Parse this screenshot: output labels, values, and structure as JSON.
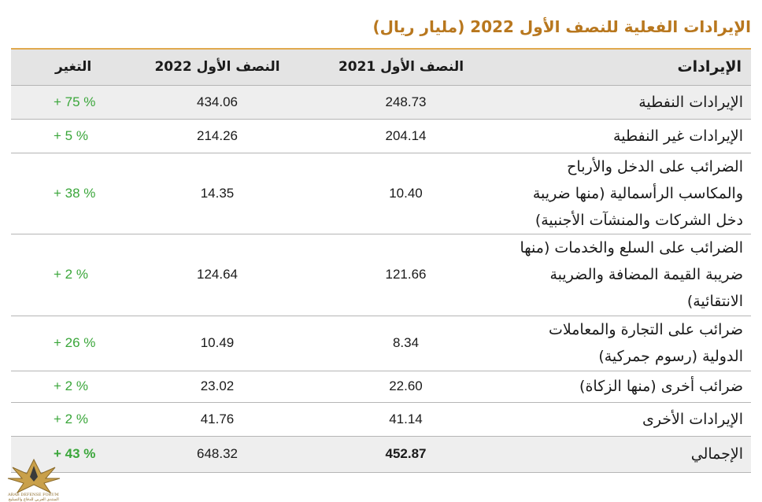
{
  "title": "الإيرادات الفعلية للنصف الأول 2022 (مليار ريال)",
  "table": {
    "headers": {
      "label": "الإيرادات",
      "h1_2021": "النصف الأول 2021",
      "h1_2022": "النصف الأول 2022",
      "change": "التغير"
    },
    "rows": [
      {
        "label": "الإيرادات النفطية",
        "h1_2021": "248.73",
        "h1_2022": "434.06",
        "change": "+ 75 %"
      },
      {
        "label": "الإيرادات غير النفطية",
        "h1_2021": "204.14",
        "h1_2022": "214.26",
        "change": "+ 5 %"
      },
      {
        "label": "الضرائب على الدخل والأرباح والمكاسب الرأسمالية (منها ضريبة دخل الشركات والمنشآت الأجنبية)",
        "h1_2021": "10.40",
        "h1_2022": "14.35",
        "change": "+ 38 %"
      },
      {
        "label": "الضرائب على السلع والخدمات (منها ضريبة القيمة المضافة والضريبة الانتقائية)",
        "h1_2021": "121.66",
        "h1_2022": "124.64",
        "change": "+ 2 %"
      },
      {
        "label": "ضرائب على التجارة والمعاملات الدولية (رسوم جمركية)",
        "h1_2021": "8.34",
        "h1_2022": "10.49",
        "change": "+ 26 %"
      },
      {
        "label": "ضرائب أخرى (منها الزكاة)",
        "h1_2021": "22.60",
        "h1_2022": "23.02",
        "change": "+ 2 %"
      },
      {
        "label": "الإيرادات الأخرى",
        "h1_2021": "41.14",
        "h1_2022": "41.76",
        "change": "+ 2 %"
      },
      {
        "label": "الإجمالي",
        "h1_2021": "452.87",
        "h1_2022": "648.32",
        "change": "+ 43 %"
      }
    ]
  },
  "watermark": {
    "name": "ARAB DEFENSE FORUM",
    "subtitle": "المنتدى العربي للدفاع والتسليح"
  },
  "colors": {
    "title": "#b8771e",
    "header_bg": "#e4e4e4",
    "shade_bg": "#eeeeee",
    "change_text": "#3aa63a",
    "top_rule": "#e0a94e"
  }
}
